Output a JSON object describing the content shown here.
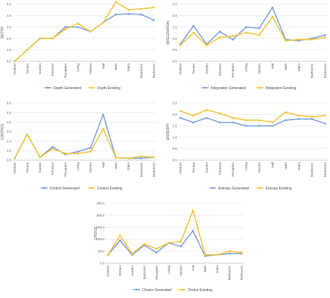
{
  "colors": {
    "generated": "#7b9fdd",
    "existing": "#f4c331",
    "grid": "#e3e3e3",
    "axis": "#bfbfbf"
  },
  "chart_data": [
    {
      "type": "line",
      "ylabel": "DEPTH",
      "ylim": [
        0,
        5
      ],
      "yticks": [
        "0.0",
        "1.0",
        "2.0",
        "3.0",
        "4.0",
        "5.0"
      ],
      "categories": [
        "Outdoor",
        "Terrace",
        "Garden",
        "Entrance",
        "Reception",
        "Living",
        "Kitchen",
        "Hall",
        "Bath",
        "Stairs",
        "Bedroom1",
        "Bedroom2"
      ],
      "series": [
        {
          "name": "Depth Generated",
          "values": [
            0,
            1,
            2,
            2,
            3,
            3,
            2.6,
            3.4,
            4.1,
            4.15,
            4.1,
            3.6
          ]
        },
        {
          "name": "Depth Existing",
          "values": [
            0,
            1,
            2,
            2,
            2.8,
            3.3,
            2.6,
            3.4,
            5.2,
            4.5,
            4.6,
            4.7
          ]
        }
      ],
      "legend": "bottom",
      "grid": true
    },
    {
      "type": "line",
      "ylabel": "INTEGRATION",
      "ylim": [
        0,
        2.5
      ],
      "yticks": [
        "0.0",
        "0.5",
        "1.0",
        "1.5",
        "2.0",
        "2.5"
      ],
      "categories": [
        "Outdoor",
        "Terrace",
        "Garden",
        "Entrance",
        "Reception",
        "Living",
        "Kitchen",
        "Hall",
        "Bath",
        "Stairs",
        "Bedroom1",
        "Bedroom2"
      ],
      "series": [
        {
          "name": "Integration Generated",
          "values": [
            0.75,
            1.55,
            0.75,
            1.3,
            0.95,
            1.5,
            1.45,
            2.35,
            0.95,
            0.9,
            1.0,
            1.15
          ]
        },
        {
          "name": "Integration Existing",
          "values": [
            0.7,
            1.25,
            0.7,
            1.05,
            1.1,
            1.25,
            1.15,
            1.95,
            0.9,
            0.95,
            0.95,
            1.05
          ]
        }
      ],
      "legend": "bottom",
      "grid": true
    },
    {
      "type": "line",
      "ylabel": "CONTROL",
      "ylim": [
        0,
        6
      ],
      "yticks": [
        "0.0",
        "1.0",
        "2.0",
        "3.0",
        "4.0",
        "5.0",
        "6.0"
      ],
      "categories": [
        "Outdoor",
        "Terrace",
        "Garden",
        "Entrance",
        "Reception",
        "Living",
        "Kitchen",
        "Hall",
        "Bath",
        "Stairs",
        "Bedroom1",
        "Bedroom2"
      ],
      "series": [
        {
          "name": "Control Generated",
          "values": [
            0.2,
            2.7,
            0.3,
            1.4,
            0.6,
            0.9,
            1.3,
            4.8,
            0.25,
            0.2,
            0.2,
            0.3
          ]
        },
        {
          "name": "Control Existing",
          "values": [
            0.2,
            2.7,
            0.3,
            1.2,
            0.7,
            0.7,
            0.9,
            3.3,
            0.25,
            0.2,
            0.4,
            0.3
          ]
        }
      ],
      "legend": "bottom",
      "grid": true
    },
    {
      "type": "line",
      "ylabel": "ENTROPY",
      "ylim": [
        0,
        2.5
      ],
      "yticks": [
        "0.0",
        "0.5",
        "1.0",
        "1.5",
        "2.0",
        "2.5"
      ],
      "categories": [
        "Outdoor",
        "Terrace",
        "Garden",
        "Entrance",
        "Reception",
        "Living",
        "Kitchen",
        "Hall",
        "Bath",
        "Stairs",
        "Bedroom1",
        "Bedroom2"
      ],
      "series": [
        {
          "name": "Entropy Generated",
          "values": [
            1.85,
            1.65,
            1.85,
            1.65,
            1.65,
            1.5,
            1.5,
            1.5,
            1.75,
            1.8,
            1.8,
            1.6
          ]
        },
        {
          "name": "Entropy Existing",
          "values": [
            2.15,
            1.95,
            2.2,
            2.05,
            1.85,
            1.75,
            1.75,
            1.65,
            2.1,
            1.95,
            1.9,
            1.95
          ]
        }
      ],
      "legend": "bottom",
      "grid": true
    },
    {
      "type": "line",
      "ylabel": "CHOICE",
      "ylim": [
        0,
        250
      ],
      "yticks": [
        "0.0",
        "50.0",
        "100.0",
        "150.0",
        "200.0",
        "250.0"
      ],
      "categories": [
        "Outdoor",
        "Terrace",
        "Garden",
        "Bathroom",
        "Reception",
        "Living",
        "Kitchen",
        "Hall",
        "Bath",
        "Stairs",
        "Bedroom1",
        "Bedroom2"
      ],
      "series": [
        {
          "name": "Choice Generated",
          "values": [
            35,
            95,
            35,
            75,
            45,
            85,
            70,
            135,
            30,
            35,
            40,
            40
          ]
        },
        {
          "name": "Choice Existing",
          "values": [
            35,
            115,
            40,
            80,
            60,
            85,
            90,
            220,
            35,
            35,
            50,
            45
          ]
        }
      ],
      "legend": "bottom",
      "grid": true
    }
  ]
}
